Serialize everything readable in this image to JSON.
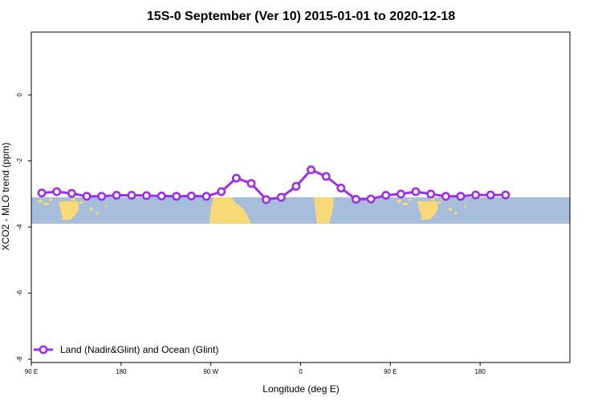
{
  "chart_data": {
    "type": "line",
    "title": "15S-0 September (Ver 10)   2015-01-01 to 2020-12-18",
    "xlabel": "Longitude (deg E)",
    "ylabel": "XCO2 - MLO trend (ppm)",
    "xlim": [
      30,
      390
    ],
    "ylim": [
      -8.1,
      1.9
    ],
    "x_ticks": [
      {
        "value": 30,
        "label": "90 E"
      },
      {
        "value": 90,
        "label": "180"
      },
      {
        "value": 150,
        "label": "90 W"
      },
      {
        "value": 210,
        "label": "0"
      },
      {
        "value": 270,
        "label": "90 E"
      },
      {
        "value": 330,
        "label": "180"
      }
    ],
    "y_ticks": [
      {
        "value": 0,
        "label": "0"
      },
      {
        "value": -2,
        "label": "-2"
      },
      {
        "value": -4,
        "label": "-4"
      },
      {
        "value": -6,
        "label": "-6"
      },
      {
        "value": -8,
        "label": "-8"
      }
    ],
    "grid": false,
    "legend_position": "bottom-left",
    "series": [
      {
        "name": "Land (Nadir&Glint) and Ocean (Glint)",
        "color": "#9b30e8",
        "x": [
          37,
          47,
          57,
          67,
          77,
          87,
          97,
          107,
          117,
          127,
          137,
          147,
          157,
          167,
          177,
          187,
          197,
          207,
          217,
          227,
          237,
          247,
          257,
          267,
          277,
          287,
          297,
          307,
          317,
          327,
          337,
          347
        ],
        "values": [
          -2.97,
          -2.93,
          -2.98,
          -3.07,
          -3.07,
          -3.04,
          -3.04,
          -3.05,
          -3.06,
          -3.07,
          -3.06,
          -3.07,
          -2.93,
          -2.52,
          -2.68,
          -3.17,
          -3.1,
          -2.77,
          -2.27,
          -2.47,
          -2.82,
          -3.16,
          -3.15,
          -3.04,
          -3.0,
          -2.93,
          -3.0,
          -3.07,
          -3.07,
          -3.03,
          -3.03,
          -3.03
        ]
      }
    ],
    "map_band": {
      "y_top": -3.1,
      "y_bottom": -3.9,
      "ocean_color": "#a6bddb",
      "land_color": "#f9d87a"
    }
  }
}
